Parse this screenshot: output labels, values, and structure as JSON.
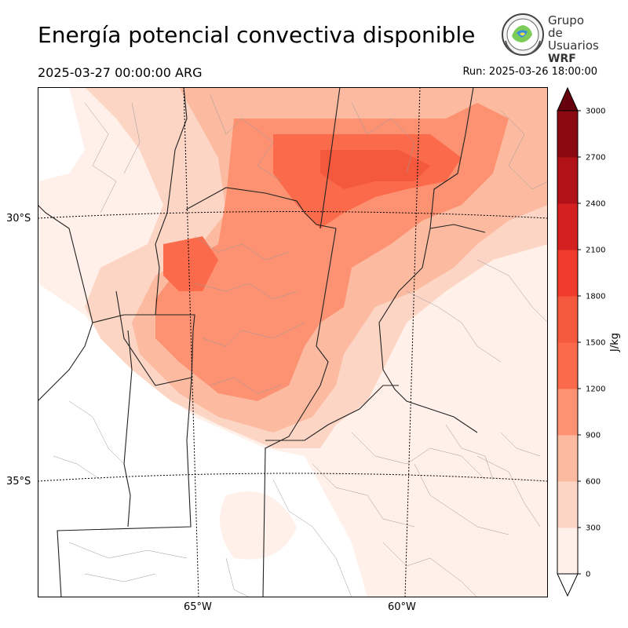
{
  "title": "Energía potencial convectiva disponible",
  "valid_time": "2025-03-27 00:00:00 ARG",
  "run_time": "Run: 2025-03-26 18:00:00",
  "logo": {
    "line1": "Grupo de",
    "line2": "Usuarios",
    "line3": "WRF",
    "icon": "globe-logo-icon"
  },
  "map": {
    "lat_labels": [
      "30°S",
      "35°S"
    ],
    "lon_labels": [
      "65°W",
      "60°W"
    ],
    "field": "CAPE"
  },
  "colorbar": {
    "unit": "J/kg",
    "ticks": [
      "0",
      "300",
      "600",
      "900",
      "1200",
      "1500",
      "1800",
      "2100",
      "2400",
      "2700",
      "3000"
    ],
    "colors": [
      "#fff0e9",
      "#fdd5c4",
      "#fcbba1",
      "#fc9272",
      "#fb6a4a",
      "#f4593e",
      "#ef3b2c",
      "#d42020",
      "#b11218",
      "#8b0a12",
      "#67000d"
    ],
    "extend": "both"
  }
}
